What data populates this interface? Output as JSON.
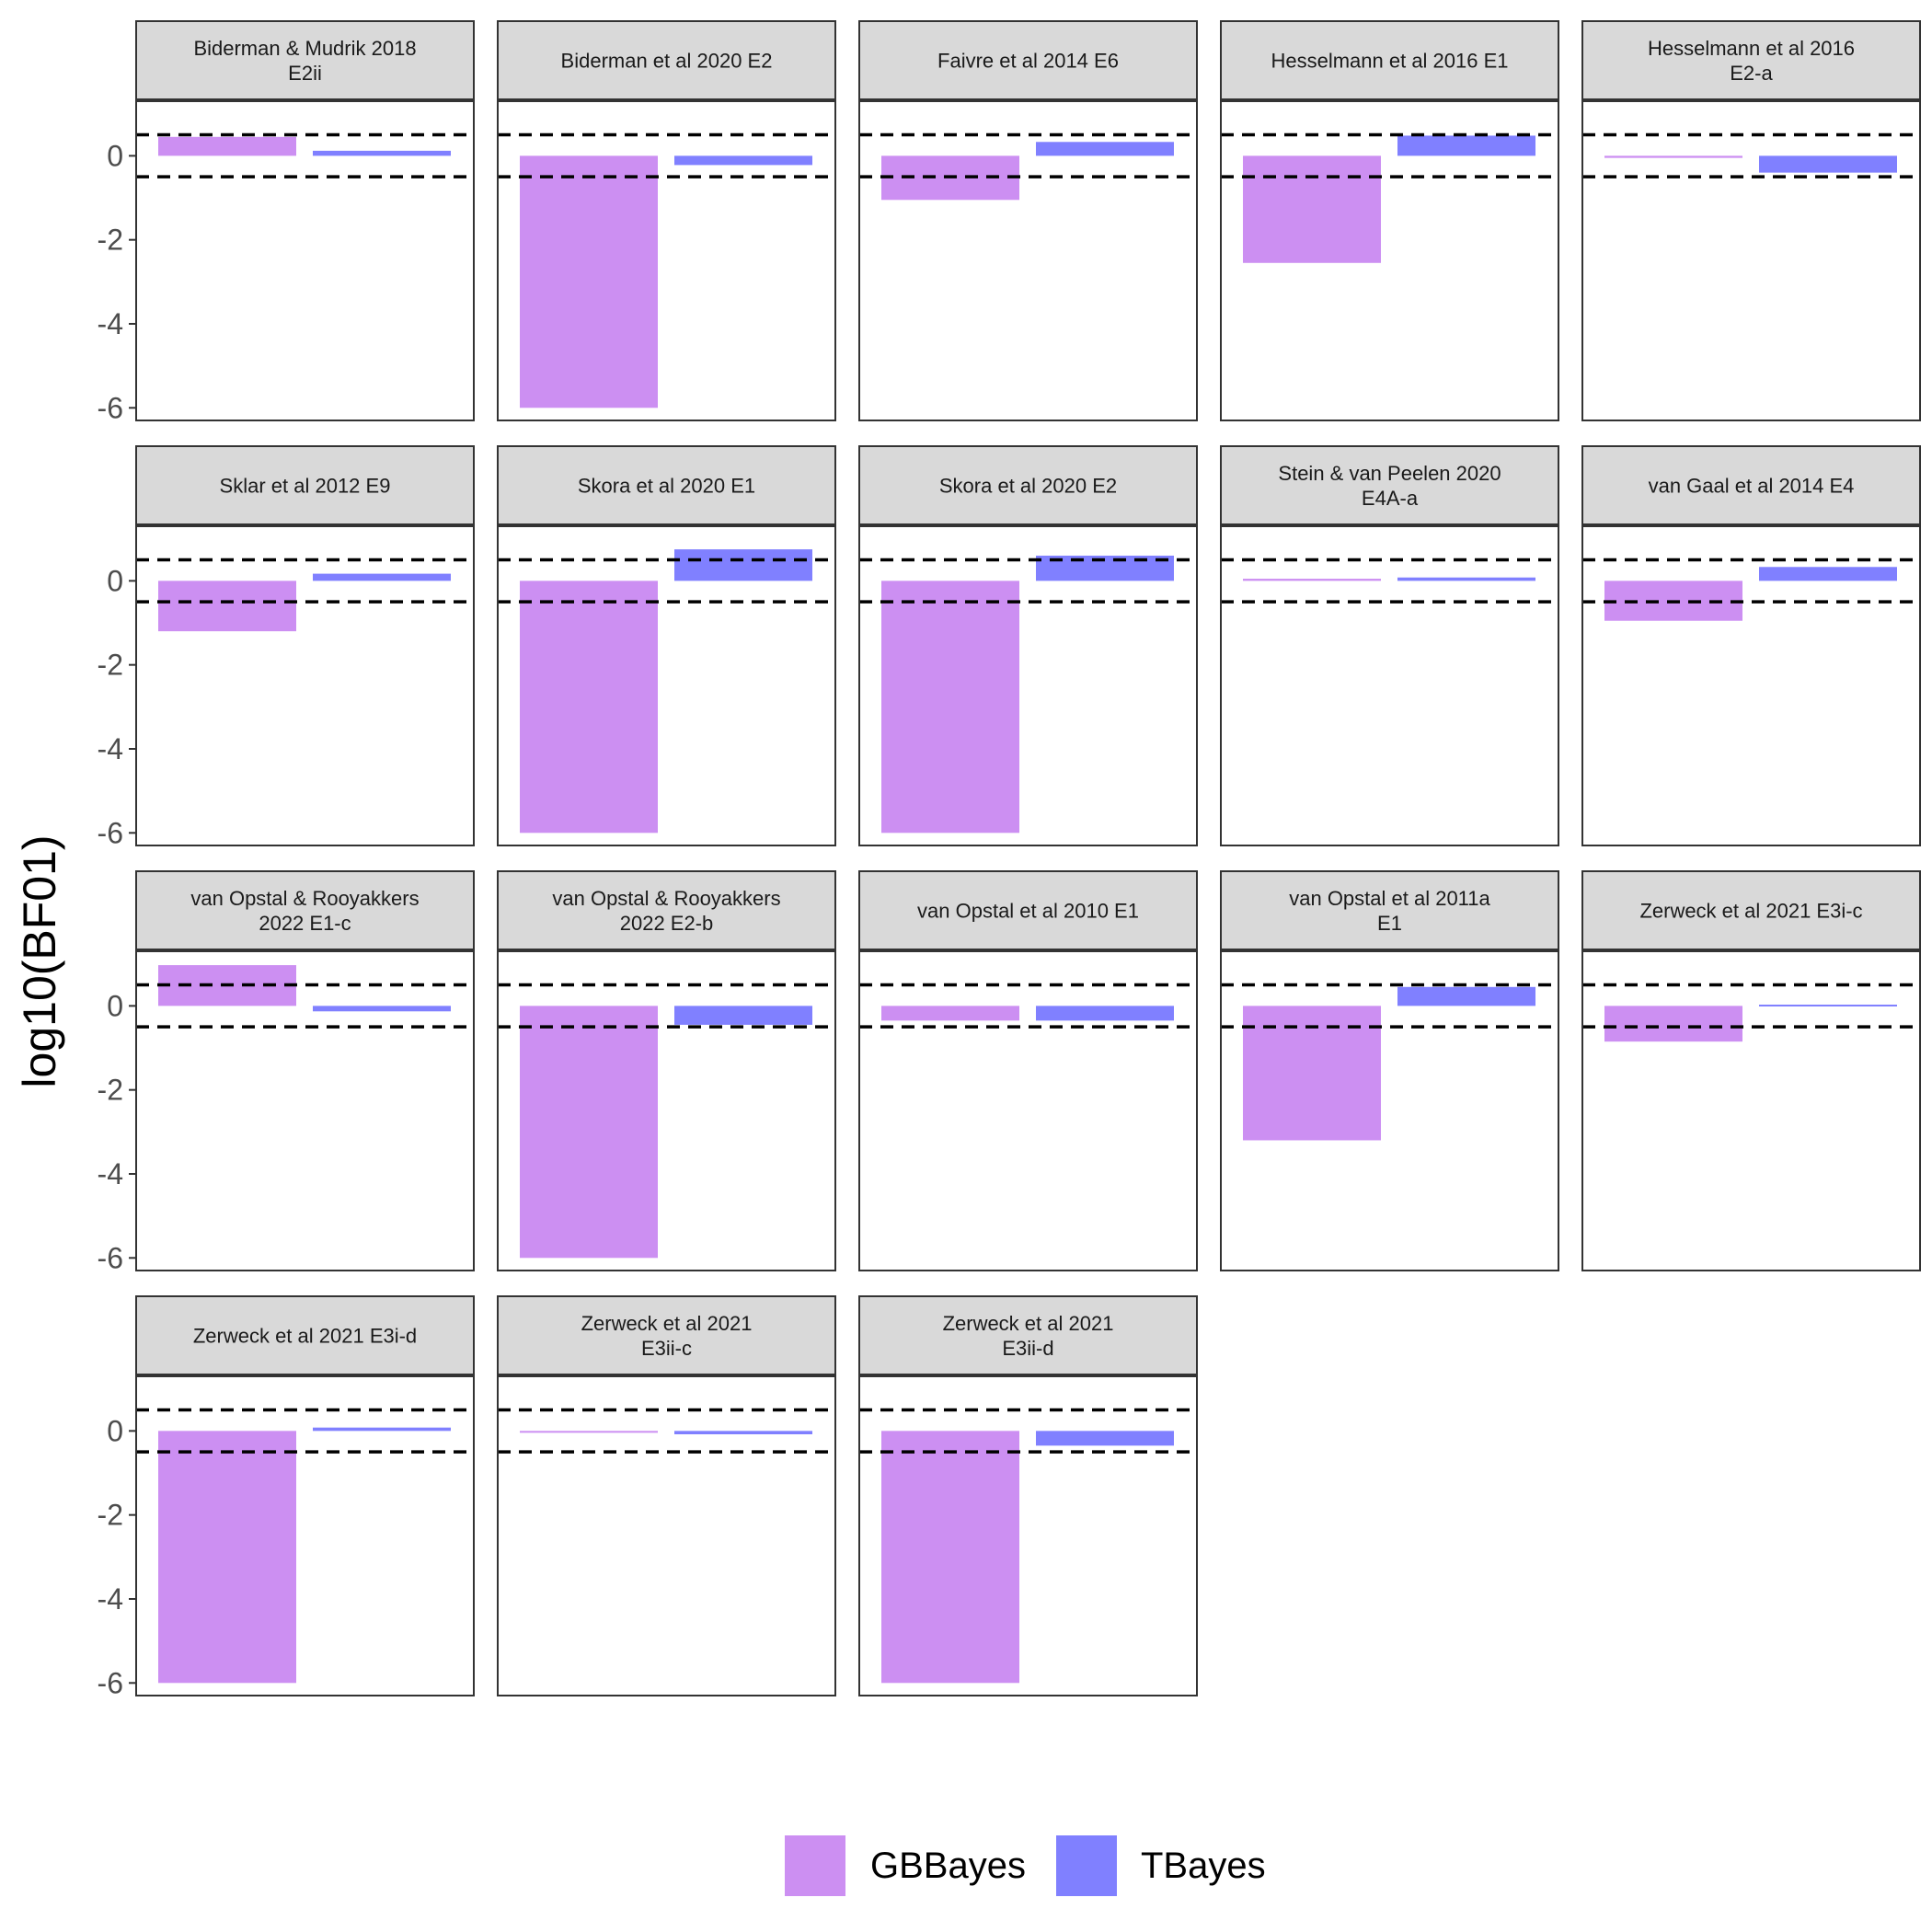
{
  "chart_data": {
    "type": "bar",
    "facet_layout": "wrap",
    "facet_columns": 5,
    "ylabel": "log10(BF01)",
    "xlabel": "",
    "ylim": [
      -6.3,
      1.3
    ],
    "yticks": [
      0,
      -2,
      -4,
      -6
    ],
    "reference_lines": [
      0.5,
      -0.5
    ],
    "reference_line_style": "dashed",
    "legend": {
      "position": "bottom"
    },
    "series": [
      {
        "name": "GBBayes",
        "color": "#CC8FF2"
      },
      {
        "name": "TBayes",
        "color": "#8080FF"
      }
    ],
    "facets": [
      {
        "title": [
          "Biderman & Mudrik 2018",
          "E2ii"
        ],
        "values": [
          0.45,
          0.12
        ]
      },
      {
        "title": [
          "Biderman et al 2020 E2"
        ],
        "values": [
          -6.0,
          -0.22
        ]
      },
      {
        "title": [
          "Faivre et al 2014 E6"
        ],
        "values": [
          -1.05,
          0.33
        ]
      },
      {
        "title": [
          "Hesselmann et al 2016 E1"
        ],
        "values": [
          -2.55,
          0.48
        ]
      },
      {
        "title": [
          "Hesselmann et al 2016",
          "E2-a"
        ],
        "values": [
          -0.05,
          -0.4
        ]
      },
      {
        "title": [
          "Sklar et al 2012 E9"
        ],
        "values": [
          -1.2,
          0.17
        ]
      },
      {
        "title": [
          "Skora et al 2020 E1"
        ],
        "values": [
          -6.0,
          0.75
        ]
      },
      {
        "title": [
          "Skora et al 2020 E2"
        ],
        "values": [
          -6.0,
          0.6
        ]
      },
      {
        "title": [
          "Stein & van Peelen 2020",
          "E4A-a"
        ],
        "values": [
          0.05,
          0.08
        ]
      },
      {
        "title": [
          "van Gaal et al 2014 E4"
        ],
        "values": [
          -0.95,
          0.33
        ]
      },
      {
        "title": [
          "van Opstal & Rooyakkers",
          "2022 E1-c"
        ],
        "values": [
          0.97,
          -0.13
        ]
      },
      {
        "title": [
          "van Opstal & Rooyakkers",
          "2022 E2-b"
        ],
        "values": [
          -6.0,
          -0.45
        ]
      },
      {
        "title": [
          "van Opstal et al 2010 E1"
        ],
        "values": [
          -0.35,
          -0.35
        ]
      },
      {
        "title": [
          "van Opstal et al 2011a",
          "E1"
        ],
        "values": [
          -3.2,
          0.45
        ]
      },
      {
        "title": [
          "Zerweck et al 2021 E3i-c"
        ],
        "values": [
          -0.85,
          0.03
        ]
      },
      {
        "title": [
          "Zerweck et al 2021 E3i-d"
        ],
        "values": [
          -6.0,
          0.08
        ]
      },
      {
        "title": [
          "Zerweck et al 2021",
          "E3ii-c"
        ],
        "values": [
          -0.02,
          -0.08
        ]
      },
      {
        "title": [
          "Zerweck et al 2021",
          "E3ii-d"
        ],
        "values": [
          -6.0,
          -0.35
        ]
      }
    ]
  }
}
